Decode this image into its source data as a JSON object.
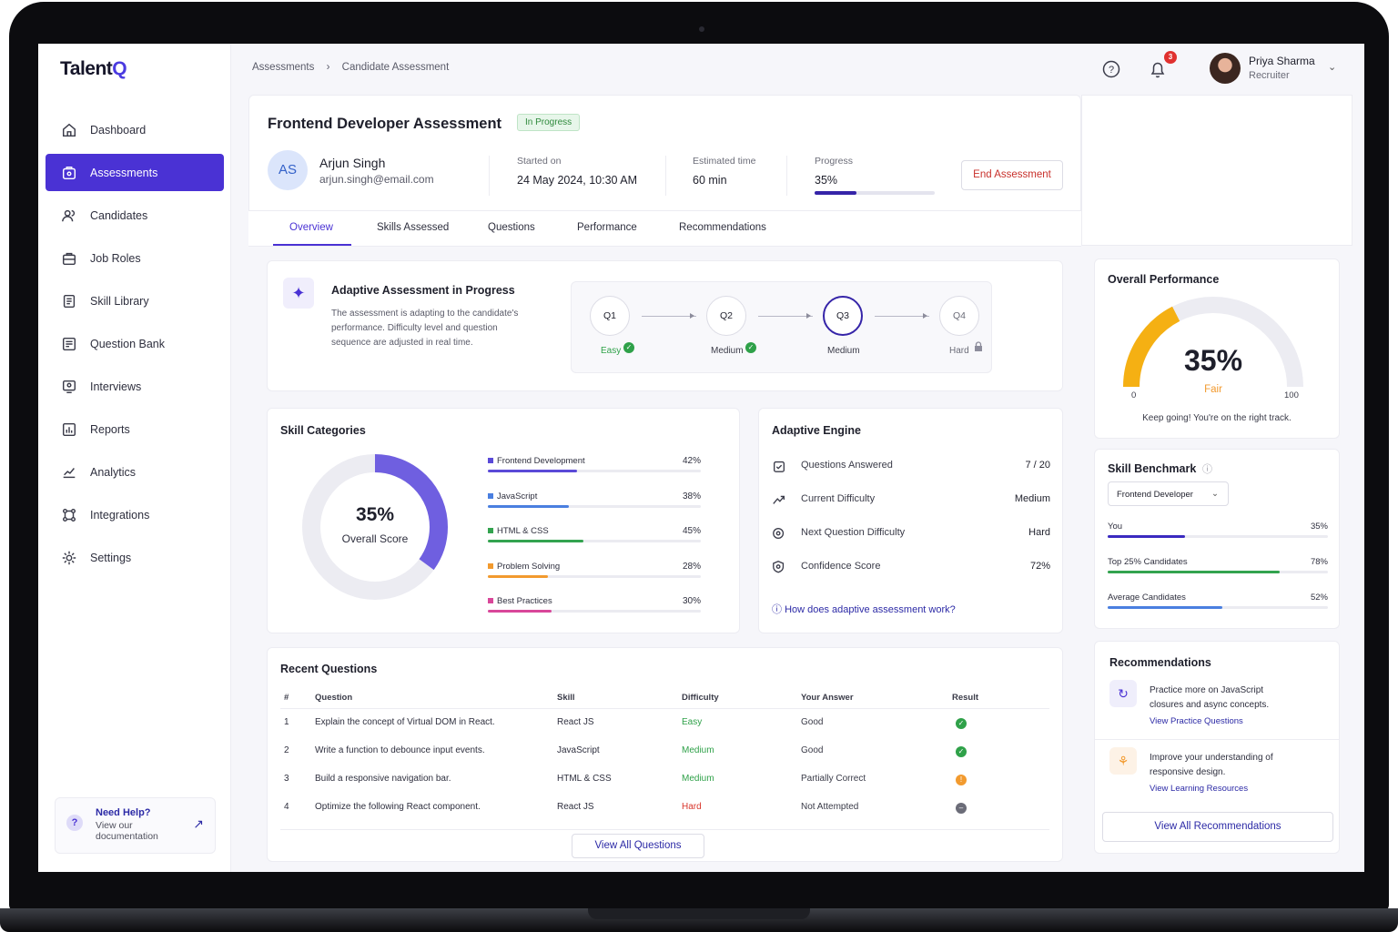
{
  "app": {
    "logo_main": "Talent",
    "logo_accent": "Q"
  },
  "sidebar": {
    "items": [
      {
        "label": "Dashboard",
        "icon": "home-icon"
      },
      {
        "label": "Assessments",
        "icon": "assessment-icon",
        "active": true
      },
      {
        "label": "Candidates",
        "icon": "users-icon"
      },
      {
        "label": "Job Roles",
        "icon": "briefcase-icon"
      },
      {
        "label": "Skill Library",
        "icon": "library-icon"
      },
      {
        "label": "Question Bank",
        "icon": "question-bank-icon"
      },
      {
        "label": "Interviews",
        "icon": "interview-icon"
      },
      {
        "label": "Reports",
        "icon": "report-icon"
      },
      {
        "label": "Analytics",
        "icon": "analytics-icon"
      },
      {
        "label": "Integrations",
        "icon": "integration-icon"
      },
      {
        "label": "Settings",
        "icon": "gear-icon"
      }
    ],
    "help": {
      "title": "Need Help?",
      "line1": "View our",
      "line2": "documentation",
      "icon": "question-icon"
    }
  },
  "header": {
    "breadcrumb": [
      "Assessments",
      "Candidate Assessment"
    ],
    "notifications": "3",
    "user": {
      "name": "Priya Sharma",
      "role": "Recruiter"
    }
  },
  "assessment": {
    "title": "Frontend Developer Assessment",
    "status": "In Progress",
    "candidate": {
      "initials": "AS",
      "name": "Arjun Singh",
      "email": "arjun.singh@email.com"
    },
    "started_label": "Started on",
    "started": "24 May 2024, 10:30 AM",
    "est_label": "Estimated time",
    "est": "60 min",
    "progress_label": "Progress",
    "progress": "35%",
    "progress_value": 0.35,
    "end_button": "End Assessment"
  },
  "tabs": [
    "Overview",
    "Skills Assessed",
    "Questions",
    "Performance",
    "Recommendations"
  ],
  "adaptive_banner": {
    "title": "Adaptive Assessment in Progress",
    "desc1": "The assessment is adapting to the candidate's",
    "desc2": "performance. Difficulty level and question",
    "desc3": "sequence are adjusted in real time.",
    "steps": [
      {
        "id": "Q1",
        "level": "Easy",
        "state": "done"
      },
      {
        "id": "Q2",
        "level": "Medium",
        "state": "done"
      },
      {
        "id": "Q3",
        "level": "Medium",
        "state": "current"
      },
      {
        "id": "Q4",
        "level": "Hard",
        "state": "locked"
      }
    ]
  },
  "skill_categories": {
    "title": "Skill Categories",
    "overall": "35%",
    "overall_label": "Overall Score",
    "overall_value": 0.35,
    "items": [
      {
        "name": "Frontend Development",
        "pct": "42%",
        "value": 0.42,
        "color": "#5a4ad8"
      },
      {
        "name": "JavaScript",
        "pct": "38%",
        "value": 0.38,
        "color": "#4a7fe0"
      },
      {
        "name": "HTML & CSS",
        "pct": "45%",
        "value": 0.45,
        "color": "#33a34f"
      },
      {
        "name": "Problem Solving",
        "pct": "28%",
        "value": 0.28,
        "color": "#f29a2e"
      },
      {
        "name": "Best Practices",
        "pct": "30%",
        "value": 0.3,
        "color": "#d9479a"
      }
    ]
  },
  "adaptive_engine": {
    "title": "Adaptive Engine",
    "rows": [
      {
        "label": "Questions Answered",
        "value": "7 / 20",
        "icon": "checklist-icon"
      },
      {
        "label": "Current Difficulty",
        "value": "Medium",
        "icon": "trend-icon"
      },
      {
        "label": "Next Question Difficulty",
        "value": "Hard",
        "icon": "target-icon"
      },
      {
        "label": "Confidence Score",
        "value": "72%",
        "icon": "shield-icon"
      }
    ],
    "link": "How does adaptive assessment work?"
  },
  "recent_questions": {
    "title": "Recent Questions",
    "headers": [
      "#",
      "Question",
      "Skill",
      "Difficulty",
      "Your Answer",
      "Result"
    ],
    "rows": [
      {
        "n": "1",
        "q": "Explain the concept of Virtual DOM in React.",
        "skill": "React JS",
        "diff": "Easy",
        "answer": "Good",
        "result": "correct"
      },
      {
        "n": "2",
        "q": "Write a function to debounce input events.",
        "skill": "JavaScript",
        "diff": "Medium",
        "answer": "Good",
        "result": "correct"
      },
      {
        "n": "3",
        "q": "Build a responsive navigation bar.",
        "skill": "HTML & CSS",
        "diff": "Medium",
        "answer": "Partially Correct",
        "result": "partial"
      },
      {
        "n": "4",
        "q": "Optimize the following React component.",
        "skill": "React JS",
        "diff": "Hard",
        "answer": "Not Attempted",
        "result": "skipped"
      }
    ],
    "difficulty_colors": {
      "Easy": "#2fa149",
      "Medium": "#2fa149",
      "Hard": "#d8352b"
    },
    "view_all": "View All Questions"
  },
  "overall_performance": {
    "title": "Overall Performance",
    "score": "35%",
    "value": 0.35,
    "rating": "Fair",
    "min": "0",
    "max": "100",
    "note": "Keep going! You're on the right track."
  },
  "skill_benchmark": {
    "title": "Skill Benchmark",
    "selected": "Frontend Developer",
    "rows": [
      {
        "label": "You",
        "pct": "35%",
        "value": 0.35,
        "color": "#3a2ac0"
      },
      {
        "label": "Top 25% Candidates",
        "pct": "78%",
        "value": 0.78,
        "color": "#33a34f"
      },
      {
        "label": "Average Candidates",
        "pct": "52%",
        "value": 0.52,
        "color": "#4a7fe0"
      }
    ]
  },
  "recommendations": {
    "title": "Recommendations",
    "items": [
      {
        "line1": "Practice more on JavaScript",
        "line2": "closures and async concepts.",
        "link": "View Practice Questions",
        "icon": "practice-icon"
      },
      {
        "line1": "Improve your understanding of",
        "line2": "responsive design.",
        "link": "View Learning Resources",
        "icon": "learning-icon"
      }
    ],
    "view_all": "View All Recommendations"
  }
}
